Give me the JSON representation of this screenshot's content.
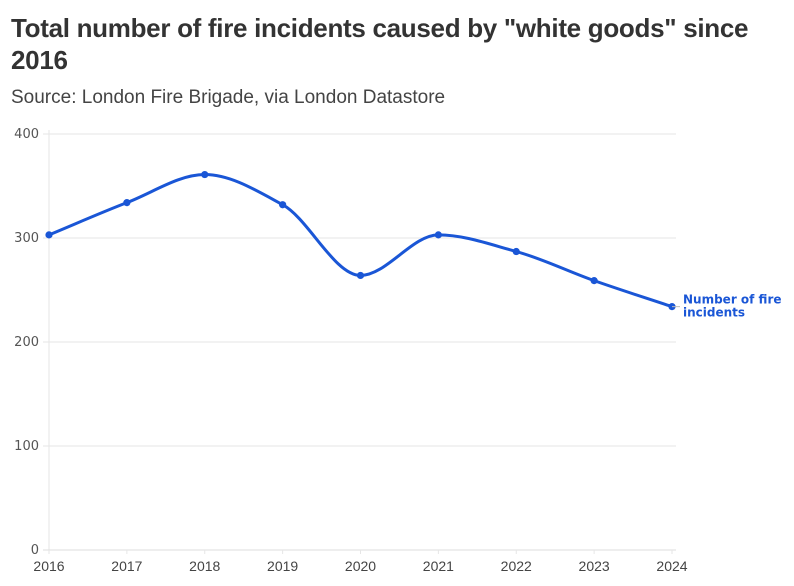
{
  "header": {
    "title": "Total number of fire incidents caused by \"white goods\" since 2016",
    "subtitle": "Source: London Fire Brigade, via London Datastore"
  },
  "colors": {
    "series": "#1a56d6",
    "grid": "#e6e6e6",
    "text": "#333333"
  },
  "chart_data": {
    "type": "line",
    "title": "Total number of fire incidents caused by \"white goods\" since 2016",
    "subtitle": "Source: London Fire Brigade, via London Datastore",
    "xlabel": "",
    "ylabel": "",
    "categories": [
      "2016",
      "2017",
      "2018",
      "2019",
      "2020",
      "2021",
      "2022",
      "2023",
      "2024"
    ],
    "series": [
      {
        "name": "Number of fire incidents",
        "label_lines": [
          "Number of fire",
          "incidents"
        ],
        "values": [
          303,
          334,
          361,
          332,
          264,
          303,
          287,
          259,
          234
        ],
        "color": "#1a56d6",
        "smooth": true,
        "markers": true
      }
    ],
    "ylim": [
      0,
      400
    ],
    "yticks": [
      0,
      100,
      200,
      300,
      400
    ],
    "grid": true,
    "legend_position": "inline-end-label"
  }
}
